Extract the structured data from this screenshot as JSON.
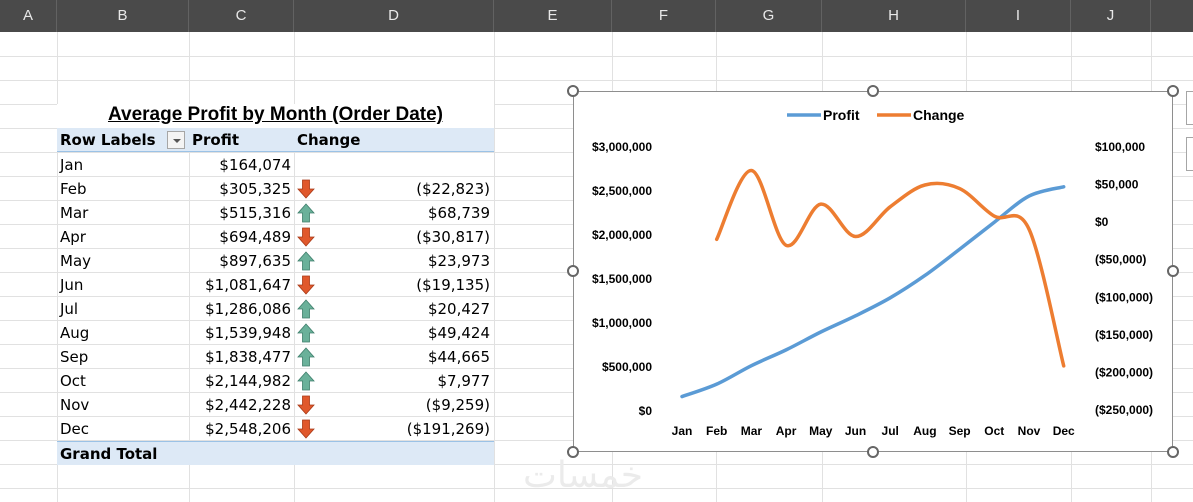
{
  "columns": [
    "A",
    "B",
    "C",
    "D",
    "E",
    "F",
    "G",
    "H",
    "I",
    "J"
  ],
  "pivot": {
    "title": "Average Profit by Month (Order Date)",
    "headers": {
      "row_labels": "Row Labels",
      "profit": "Profit",
      "change": "Change"
    },
    "rows": [
      {
        "label": "Jan",
        "profit": "$164,074",
        "change": "",
        "arrow": "none"
      },
      {
        "label": "Feb",
        "profit": "$305,325",
        "change": "($22,823)",
        "arrow": "down"
      },
      {
        "label": "Mar",
        "profit": "$515,316",
        "change": "$68,739",
        "arrow": "up"
      },
      {
        "label": "Apr",
        "profit": "$694,489",
        "change": "($30,817)",
        "arrow": "down"
      },
      {
        "label": "May",
        "profit": "$897,635",
        "change": "$23,973",
        "arrow": "up"
      },
      {
        "label": "Jun",
        "profit": "$1,081,647",
        "change": "($19,135)",
        "arrow": "down"
      },
      {
        "label": "Jul",
        "profit": "$1,286,086",
        "change": "$20,427",
        "arrow": "up"
      },
      {
        "label": "Aug",
        "profit": "$1,539,948",
        "change": "$49,424",
        "arrow": "up"
      },
      {
        "label": "Sep",
        "profit": "$1,838,477",
        "change": "$44,665",
        "arrow": "up"
      },
      {
        "label": "Oct",
        "profit": "$2,144,982",
        "change": "$7,977",
        "arrow": "up"
      },
      {
        "label": "Nov",
        "profit": "$2,442,228",
        "change": "($9,259)",
        "arrow": "down"
      },
      {
        "label": "Dec",
        "profit": "$2,548,206",
        "change": "($191,269)",
        "arrow": "down"
      }
    ],
    "grand_total": "Grand Total"
  },
  "colors": {
    "arrow_up": "#6ab19a",
    "arrow_down": "#e0582c",
    "profit_line": "#5b9bd5",
    "change_line": "#ed7d31",
    "header_band": "#dde9f6",
    "column_header_bg": "#4a4a4a"
  },
  "chart_data": {
    "type": "line",
    "categories": [
      "Jan",
      "Feb",
      "Mar",
      "Apr",
      "May",
      "Jun",
      "Jul",
      "Aug",
      "Sep",
      "Oct",
      "Nov",
      "Dec"
    ],
    "legend_position": "top",
    "grid": false,
    "smooth": true,
    "series": [
      {
        "name": "Profit",
        "axis": "left",
        "color": "#5b9bd5",
        "values": [
          164074,
          305325,
          515316,
          694489,
          897635,
          1081647,
          1286086,
          1539948,
          1838477,
          2144982,
          2442228,
          2548206
        ]
      },
      {
        "name": "Change",
        "axis": "right",
        "color": "#ed7d31",
        "values": [
          null,
          -22823,
          68739,
          -30817,
          23973,
          -19135,
          20427,
          49424,
          44665,
          7977,
          -9259,
          -191269
        ]
      }
    ],
    "left_axis": {
      "ylim": [
        0,
        3000000
      ],
      "ticks": [
        0,
        500000,
        1000000,
        1500000,
        2000000,
        2500000,
        3000000
      ],
      "tick_labels": [
        "$0",
        "$500,000",
        "$1,000,000",
        "$1,500,000",
        "$2,000,000",
        "$2,500,000",
        "$3,000,000"
      ]
    },
    "right_axis": {
      "ylim": [
        -250000,
        100000
      ],
      "ticks": [
        -250000,
        -200000,
        -150000,
        -100000,
        -50000,
        0,
        50000,
        100000
      ],
      "tick_labels": [
        "($250,000)",
        "($200,000)",
        "($150,000)",
        "($100,000)",
        "($50,000)",
        "$0",
        "$50,000",
        "$100,000"
      ]
    }
  },
  "watermark": "خمسات"
}
